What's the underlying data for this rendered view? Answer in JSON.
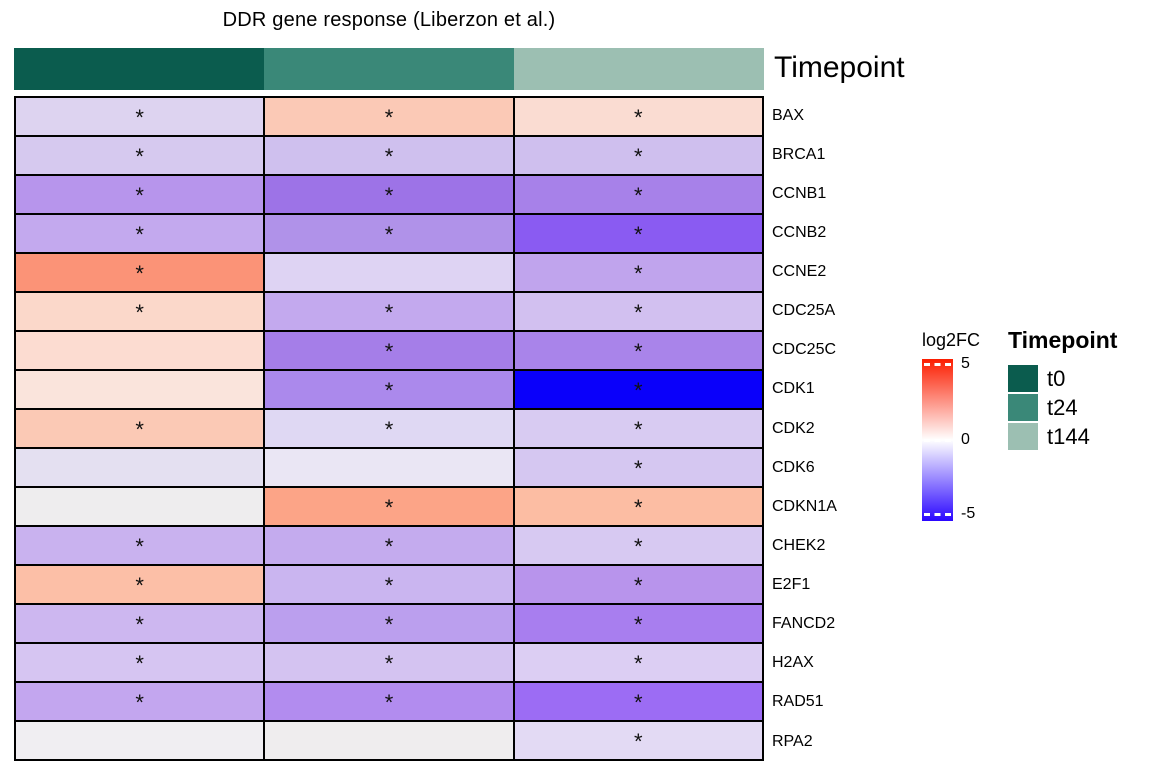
{
  "annotation_bar": {
    "label": "Timepoint",
    "segments": [
      {
        "name": "t0",
        "color": "#0b5c4e"
      },
      {
        "name": "t24",
        "color": "#3a8878"
      },
      {
        "name": "t144",
        "color": "#9cbfb2"
      }
    ]
  },
  "chart_data": {
    "type": "heatmap",
    "title": "DDR gene response (Liberzon et al.)",
    "columns": [
      "t0",
      "t24",
      "t144"
    ],
    "value_label": "log2FC",
    "significance_marker": "*",
    "color_scale": {
      "min": -5,
      "mid": 0,
      "max": 5,
      "min_color": "#2a06ff",
      "mid_color": "#ffffff",
      "max_color": "#fb1d00"
    },
    "rows": [
      {
        "gene": "BAX",
        "colors": [
          "#ddd3f0",
          "#fbc9b6",
          "#fadcd2"
        ],
        "log2fc_est": [
          -0.8,
          1.2,
          0.7
        ],
        "significant": [
          true,
          true,
          true
        ]
      },
      {
        "gene": "BRCA1",
        "colors": [
          "#d6c9ef",
          "#cfc0ee",
          "#cfbfee"
        ],
        "log2fc_est": [
          -0.9,
          -1.1,
          -1.1
        ],
        "significant": [
          true,
          true,
          true
        ]
      },
      {
        "gene": "CCNB1",
        "colors": [
          "#b795ec",
          "#9d73e7",
          "#a781e9"
        ],
        "log2fc_est": [
          -1.9,
          -2.7,
          -2.4
        ],
        "significant": [
          true,
          true,
          true
        ]
      },
      {
        "gene": "CCNB2",
        "colors": [
          "#c3a9ee",
          "#b092e9",
          "#8a5bf2"
        ],
        "log2fc_est": [
          -1.6,
          -2.1,
          -3.3
        ],
        "significant": [
          true,
          true,
          true
        ]
      },
      {
        "gene": "CCNE2",
        "colors": [
          "#fb9377",
          "#ded3f3",
          "#c0a4ed"
        ],
        "log2fc_est": [
          2.7,
          -0.8,
          -1.7
        ],
        "significant": [
          true,
          false,
          true
        ]
      },
      {
        "gene": "CDC25A",
        "colors": [
          "#fbd8ca",
          "#c3a9ee",
          "#d2c0f0"
        ],
        "log2fc_est": [
          1.0,
          -1.6,
          -1.2
        ],
        "significant": [
          true,
          true,
          true
        ]
      },
      {
        "gene": "CDC25C",
        "colors": [
          "#fcdcd1",
          "#a57ee8",
          "#a984ea"
        ],
        "log2fc_est": [
          0.9,
          -2.5,
          -2.3
        ],
        "significant": [
          false,
          true,
          true
        ]
      },
      {
        "gene": "CDK1",
        "colors": [
          "#fae4dc",
          "#ab89ec",
          "#0a00fa"
        ],
        "log2fc_est": [
          0.7,
          -2.2,
          -5.0
        ],
        "significant": [
          false,
          true,
          true
        ]
      },
      {
        "gene": "CDK2",
        "colors": [
          "#fbc9b5",
          "#dfd8f3",
          "#d8cbf2"
        ],
        "log2fc_est": [
          1.2,
          -0.7,
          -0.9
        ],
        "significant": [
          true,
          true,
          true
        ]
      },
      {
        "gene": "CDK6",
        "colors": [
          "#e4e0f1",
          "#eae6f4",
          "#d5c7f1"
        ],
        "log2fc_est": [
          -0.6,
          -0.4,
          -1.1
        ],
        "significant": [
          false,
          false,
          true
        ]
      },
      {
        "gene": "CDKN1A",
        "colors": [
          "#eeedee",
          "#fca487",
          "#fcbda3"
        ],
        "log2fc_est": [
          0.0,
          2.3,
          1.5
        ],
        "significant": [
          false,
          true,
          true
        ]
      },
      {
        "gene": "CHEK2",
        "colors": [
          "#c9b2ef",
          "#c4abee",
          "#d7c9f2"
        ],
        "log2fc_est": [
          -1.4,
          -1.5,
          -1.0
        ],
        "significant": [
          true,
          true,
          true
        ]
      },
      {
        "gene": "E2F1",
        "colors": [
          "#fcbfa7",
          "#cab5f0",
          "#b894ec"
        ],
        "log2fc_est": [
          1.5,
          -1.3,
          -1.9
        ],
        "significant": [
          true,
          true,
          true
        ]
      },
      {
        "gene": "FANCD2",
        "colors": [
          "#cdb7f0",
          "#bb9fee",
          "#a87eef"
        ],
        "log2fc_est": [
          -1.3,
          -1.8,
          -2.3
        ],
        "significant": [
          true,
          true,
          true
        ]
      },
      {
        "gene": "H2AX",
        "colors": [
          "#d6c5f2",
          "#d4c3f1",
          "#dccef3"
        ],
        "log2fc_est": [
          -1.1,
          -1.2,
          -0.9
        ],
        "significant": [
          true,
          true,
          true
        ]
      },
      {
        "gene": "RAD51",
        "colors": [
          "#c3a6ef",
          "#b28cef",
          "#9c6cf4"
        ],
        "log2fc_est": [
          -1.5,
          -2.0,
          -2.7
        ],
        "significant": [
          true,
          true,
          true
        ]
      },
      {
        "gene": "RPA2",
        "colors": [
          "#f0eef2",
          "#efedee",
          "#e3daf4"
        ],
        "log2fc_est": [
          -0.1,
          -0.1,
          -0.7
        ],
        "significant": [
          false,
          false,
          true
        ]
      }
    ]
  },
  "fc_legend": {
    "title": "log2FC",
    "ticks": [
      {
        "label": "5",
        "pos": 0.03
      },
      {
        "label": "0",
        "pos": 0.5
      },
      {
        "label": "-5",
        "pos": 0.957
      }
    ]
  },
  "timepoint_legend": {
    "title": "Timepoint",
    "items": [
      {
        "label": "t0",
        "color": "#0b5c4e"
      },
      {
        "label": "t24",
        "color": "#3a8878"
      },
      {
        "label": "t144",
        "color": "#9cbfb2"
      }
    ]
  }
}
